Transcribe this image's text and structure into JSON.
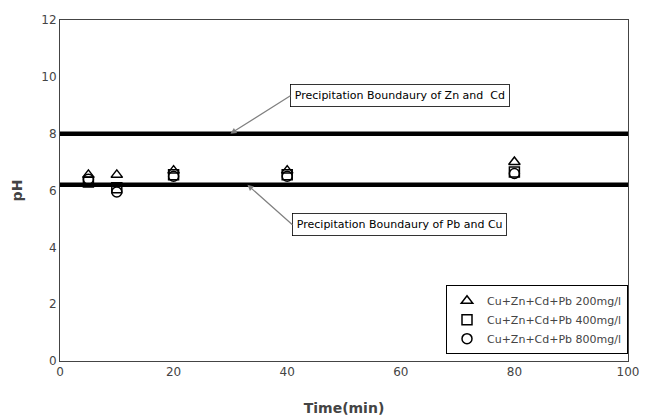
{
  "chart_data": {
    "type": "scatter",
    "xlabel": "Time(min)",
    "ylabel": "pH",
    "xlim": [
      0,
      100
    ],
    "ylim": [
      0,
      12
    ],
    "xticks": [
      0,
      20,
      40,
      60,
      80,
      100
    ],
    "yticks": [
      0,
      2,
      4,
      6,
      8,
      10,
      12
    ],
    "grid": false,
    "legend": "lower right",
    "series": [
      {
        "name": "Cu+Zn+Cd+Pb 200mg/l",
        "color": "#000000",
        "marker": "triangle",
        "x": [
          5,
          10,
          20,
          40,
          80
        ],
        "values": [
          6.55,
          6.55,
          6.7,
          6.7,
          7.0
        ]
      },
      {
        "name": "Cu+Zn+Cd+Pb 400mg/l",
        "color": "#000000",
        "marker": "square",
        "x": [
          5,
          10,
          20,
          40,
          80
        ],
        "values": [
          6.3,
          6.1,
          6.55,
          6.55,
          6.65
        ]
      },
      {
        "name": "Cu+Zn+Cd+Pb 800mg/l",
        "color": "#000000",
        "marker": "circle",
        "x": [
          5,
          10,
          20,
          40,
          80
        ],
        "values": [
          6.4,
          5.95,
          6.5,
          6.5,
          6.6
        ]
      }
    ],
    "hlines": [
      {
        "y": 8.0,
        "color": "#000000"
      },
      {
        "y": 6.2,
        "color": "#000000"
      }
    ],
    "annotations": [
      {
        "text": "Precipitation Boundaury of Zn and  Cd",
        "x": 30,
        "y": 8.0
      },
      {
        "text": "Precipitation Boundaury of Pb and Cu",
        "x": 33,
        "y": 6.2
      }
    ]
  }
}
